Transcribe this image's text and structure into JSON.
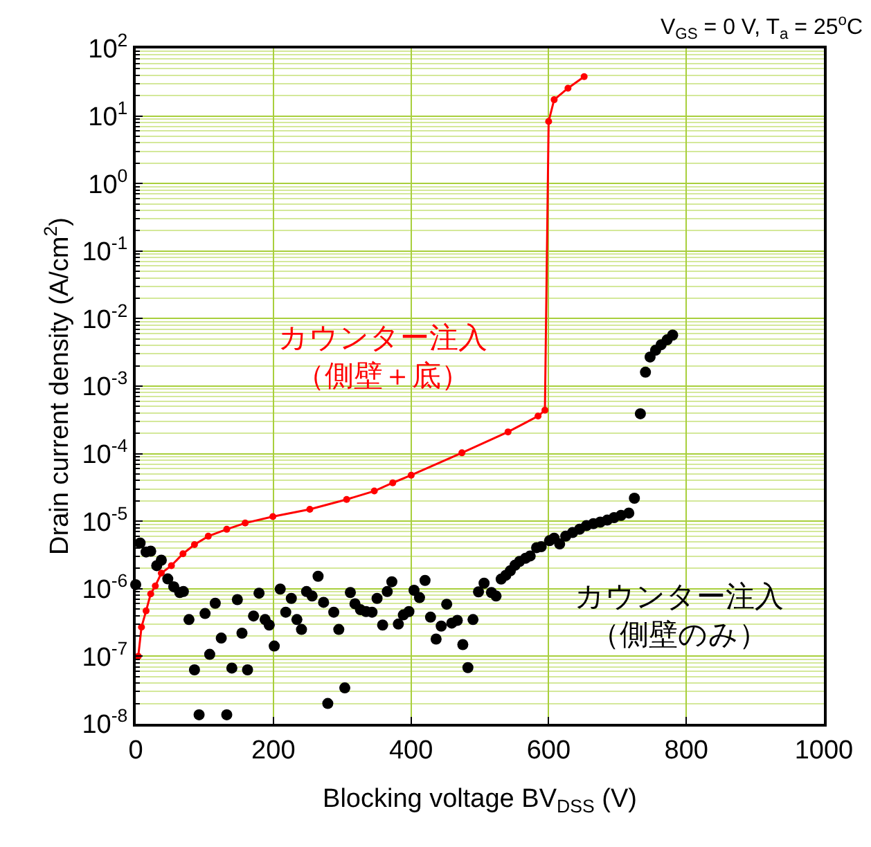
{
  "chart_data": {
    "type": "line",
    "xlabel": "Blocking voltage BV$_{DSS}$ (V)",
    "ylabel": "Drain current density (A/cm$^{2}$)",
    "annotations": [
      "V$_{GS}$ = 0 V, T$_{a}$ = 25$^{o}$C"
    ],
    "xlim": [
      0,
      1000
    ],
    "xticks": [
      0,
      200,
      400,
      600,
      800,
      1000
    ],
    "ylim": [
      1e-08,
      100
    ],
    "yticks": [
      {
        "value": 1e-08,
        "label": "10$^{-8}$"
      },
      {
        "value": 2e-08,
        "label": null
      },
      {
        "value": 3e-08,
        "label": null
      },
      {
        "value": 4e-08,
        "label": null
      },
      {
        "value": 5e-08,
        "label": null
      },
      {
        "value": 6e-08,
        "label": null
      },
      {
        "value": 7e-08,
        "label": null
      },
      {
        "value": 8e-08,
        "label": null
      },
      {
        "value": 9e-08,
        "label": null
      },
      {
        "value": 1e-07,
        "label": "10$^{-7}$"
      },
      {
        "value": 2e-07,
        "label": null
      },
      {
        "value": 3e-07,
        "label": null
      },
      {
        "value": 4e-07,
        "label": null
      },
      {
        "value": 5e-07,
        "label": null
      },
      {
        "value": 6e-07,
        "label": null
      },
      {
        "value": 7e-07,
        "label": null
      },
      {
        "value": 8e-07,
        "label": null
      },
      {
        "value": 9e-07,
        "label": null
      },
      {
        "value": 1e-06,
        "label": "10$^{-6}$"
      },
      {
        "value": 2e-06,
        "label": null
      },
      {
        "value": 3e-06,
        "label": null
      },
      {
        "value": 4e-06,
        "label": null
      },
      {
        "value": 5e-06,
        "label": null
      },
      {
        "value": 6e-06,
        "label": null
      },
      {
        "value": 7e-06,
        "label": null
      },
      {
        "value": 8e-06,
        "label": null
      },
      {
        "value": 9e-06,
        "label": null
      },
      {
        "value": 1e-05,
        "label": "10$^{-5}$"
      },
      {
        "value": 2e-05,
        "label": null
      },
      {
        "value": 3e-05,
        "label": null
      },
      {
        "value": 4e-05,
        "label": null
      },
      {
        "value": 5e-05,
        "label": null
      },
      {
        "value": 6e-05,
        "label": null
      },
      {
        "value": 7e-05,
        "label": null
      },
      {
        "value": 8e-05,
        "label": null
      },
      {
        "value": 9e-05,
        "label": null
      },
      {
        "value": 0.0001,
        "label": "10$^{-4}$"
      },
      {
        "value": 0.0002,
        "label": null
      },
      {
        "value": 0.0003,
        "label": null
      },
      {
        "value": 0.0004,
        "label": null
      },
      {
        "value": 0.0005,
        "label": null
      },
      {
        "value": 0.0006,
        "label": null
      },
      {
        "value": 0.0007,
        "label": null
      },
      {
        "value": 0.0008,
        "label": null
      },
      {
        "value": 0.0009,
        "label": null
      },
      {
        "value": 0.001,
        "label": "10$^{-3}$"
      },
      {
        "value": 0.002,
        "label": null
      },
      {
        "value": 0.003,
        "label": null
      },
      {
        "value": 0.004,
        "label": null
      },
      {
        "value": 0.005,
        "label": null
      },
      {
        "value": 0.006,
        "label": null
      },
      {
        "value": 0.007,
        "label": null
      },
      {
        "value": 0.008,
        "label": null
      },
      {
        "value": 0.009,
        "label": null
      },
      {
        "value": 0.01,
        "label": "10$^{-2}$"
      },
      {
        "value": 0.02,
        "label": null
      },
      {
        "value": 0.03,
        "label": null
      },
      {
        "value": 0.04,
        "label": null
      },
      {
        "value": 0.05,
        "label": null
      },
      {
        "value": 0.06,
        "label": null
      },
      {
        "value": 0.07,
        "label": null
      },
      {
        "value": 0.08,
        "label": null
      },
      {
        "value": 0.09,
        "label": null
      },
      {
        "value": 0.1,
        "label": "10$^{-1}$"
      },
      {
        "value": 0.2,
        "label": null
      },
      {
        "value": 0.3,
        "label": null
      },
      {
        "value": 0.4,
        "label": null
      },
      {
        "value": 0.5,
        "label": null
      },
      {
        "value": 0.6,
        "label": null
      },
      {
        "value": 0.7,
        "label": null
      },
      {
        "value": 0.8,
        "label": null
      },
      {
        "value": 0.9,
        "label": null
      },
      {
        "value": 1,
        "label": "10$^{0}$"
      },
      {
        "value": 2,
        "label": null
      },
      {
        "value": 3,
        "label": null
      },
      {
        "value": 4,
        "label": null
      },
      {
        "value": 5,
        "label": null
      },
      {
        "value": 6,
        "label": null
      },
      {
        "value": 7,
        "label": null
      },
      {
        "value": 8,
        "label": null
      },
      {
        "value": 9,
        "label": null
      },
      {
        "value": 10,
        "label": "10$^{1}$"
      },
      {
        "value": 20,
        "label": null
      },
      {
        "value": 30,
        "label": null
      },
      {
        "value": 40,
        "label": null
      },
      {
        "value": 50,
        "label": null
      },
      {
        "value": 60,
        "label": null
      },
      {
        "value": 70,
        "label": null
      },
      {
        "value": 80,
        "label": null
      },
      {
        "value": 90,
        "label": null
      },
      {
        "value": 100,
        "label": "10$^{2}$"
      }
    ],
    "log": "y",
    "grid": true,
    "legend": false,
    "marker": "circle",
    "line_style": "solid",
    "series": [
      {
        "name": "カウンター注入（側壁＋底）",
        "color": "#ff0000",
        "x": [
          3.7,
          8.4,
          15.1,
          21.8,
          28.5,
          37.2,
          51.9,
          68.7,
          85.4,
          105.5,
          132.3,
          159.1,
          199.3,
          253,
          306.5,
          346.7,
          373.5,
          400.3,
          474,
          541,
          584.6,
          594.6,
          600,
          608,
          628.1,
          651.6
        ],
        "values": [
          1e-07,
          2.7e-07,
          4.7e-07,
          8.4e-07,
          1.1e-06,
          1.7e-06,
          2.2e-06,
          3.3e-06,
          4.5e-06,
          6e-06,
          7.6e-06,
          9.4e-06,
          1.17e-05,
          1.5e-05,
          2.1e-05,
          2.8e-05,
          3.7e-05,
          4.8e-05,
          0.000103,
          0.00021,
          0.00036,
          0.00044,
          8.3,
          17.4,
          25.8,
          38.3
        ]
      },
      {
        "name": "カウンター注入（側壁のみ）",
        "type": "scatter",
        "color": "#000000",
        "x": [
          0,
          6.4,
          15.1,
          21.8,
          30.5,
          37.2,
          46.6,
          55.3,
          64,
          69.3,
          77.4,
          85.4,
          92.1,
          100.8,
          107.5,
          115.6,
          124.3,
          132.3,
          139.7,
          147.7,
          154.4,
          162.5,
          171.2,
          179.2,
          188,
          194,
          201.3,
          210,
          218,
          226.1,
          234.2,
          240.9,
          248.2,
          256.3,
          265,
          273,
          279.1,
          287.8,
          295.1,
          303.8,
          311.9,
          318.6,
          326.6,
          334.7,
          343.4,
          350.7,
          358.8,
          365.5,
          372.2,
          381.6,
          388.9,
          397,
          404.4,
          412.4,
          420.4,
          428.4,
          436.5,
          443.9,
          451.9,
          459.3,
          467.3,
          475.3,
          482.7,
          490.1,
          498.1,
          506.2,
          516.9,
          523.6,
          531,
          537.7,
          544.4,
          551.1,
          557.8,
          566.5,
          573.2,
          582.5,
          589.2,
          601.3,
          608,
          616,
          624.8,
          634.8,
          644.9,
          654.9,
          665,
          675,
          685.1,
          695.1,
          705.2,
          716.5,
          724.6,
          733.3,
          740.7,
          747.4,
          755.4,
          763.5,
          772.2,
          780.2
        ],
        "values": [
          1.15e-06,
          4.75e-06,
          3.5e-06,
          3.6e-06,
          2.2e-06,
          2.65e-06,
          1.4e-06,
          1.07e-06,
          8.8e-07,
          9.1e-07,
          3.5e-07,
          6.3e-08,
          1.36e-08,
          4.3e-07,
          1.07e-07,
          6.1e-07,
          1.86e-07,
          1.36e-08,
          6.7e-08,
          6.9e-07,
          2.2e-07,
          6.3e-08,
          3.95e-07,
          8.6e-07,
          3.5e-07,
          2.9e-07,
          1.42e-07,
          9.9e-07,
          4.5e-07,
          7.2e-07,
          3.5e-07,
          2.5e-07,
          9.1e-07,
          7.8e-07,
          1.53e-06,
          6.3e-07,
          2e-08,
          4.5e-07,
          2.5e-07,
          3.4e-08,
          8.8e-07,
          6e-07,
          4.9e-07,
          4.6e-07,
          4.5e-07,
          7.2e-07,
          2.9e-07,
          9.1e-07,
          1.27e-06,
          3e-07,
          4.1e-07,
          4.6e-07,
          9.5e-07,
          7.4e-07,
          1.33e-06,
          3.8e-07,
          1.8e-07,
          2.8e-07,
          5.9e-07,
          3.1e-07,
          3.4e-07,
          1.49e-07,
          6.8e-08,
          3.5e-07,
          9e-07,
          1.21e-06,
          8.8e-07,
          7.8e-07,
          1.39e-06,
          1.58e-06,
          1.85e-06,
          2.23e-06,
          2.54e-06,
          2.83e-06,
          3.06e-06,
          4.06e-06,
          4.2e-06,
          5.15e-06,
          5.6e-06,
          4.6e-06,
          6e-06,
          6.8e-06,
          7.6e-06,
          8.6e-06,
          9.2e-06,
          9.7e-06,
          1.04e-05,
          1.13e-05,
          1.22e-05,
          1.32e-05,
          2.19e-05,
          0.00039,
          0.00161,
          0.0027,
          0.0034,
          0.0041,
          0.00485,
          0.0057
        ]
      }
    ]
  }
}
